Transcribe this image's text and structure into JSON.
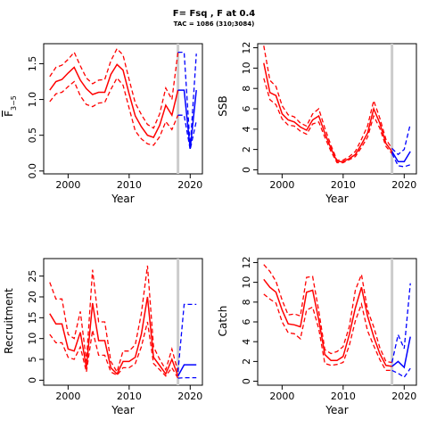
{
  "figure": {
    "title": "F= Fsq , F at 0.4",
    "subtitle": "TAC = 1086 (310;3084)"
  },
  "colors": {
    "history": "#ff0000",
    "projection": "#0000ff",
    "divider": "#cccccc"
  },
  "chart_data": [
    {
      "id": "f",
      "type": "line",
      "xlabel": "Year",
      "ylabel_main": "F",
      "ylabel_sub": "3−5",
      "xlim": [
        1996,
        2022
      ],
      "ylim": [
        -0.04,
        1.78
      ],
      "xticks": [
        2000,
        2010,
        2020
      ],
      "xtick_labels": [
        "2000",
        "2010",
        "2020"
      ],
      "yticks": [
        0,
        0.5,
        1.0,
        1.5
      ],
      "ytick_labels": [
        "0.0",
        "0.5",
        "1.0",
        "1.5"
      ],
      "divider_x": 2018,
      "history_x": [
        1997,
        1998,
        1999,
        2000,
        2001,
        2002,
        2003,
        2004,
        2005,
        2006,
        2007,
        2008,
        2009,
        2010,
        2011,
        2012,
        2013,
        2014,
        2015,
        2016,
        2017,
        2018
      ],
      "history": {
        "mid": [
          1.13,
          1.25,
          1.28,
          1.37,
          1.45,
          1.27,
          1.15,
          1.07,
          1.1,
          1.1,
          1.35,
          1.49,
          1.41,
          1.08,
          0.77,
          0.62,
          0.5,
          0.47,
          0.64,
          0.92,
          0.78,
          1.13
        ],
        "lower": [
          0.97,
          1.08,
          1.1,
          1.18,
          1.25,
          1.05,
          0.93,
          0.9,
          0.95,
          0.96,
          1.14,
          1.3,
          1.2,
          0.88,
          0.56,
          0.45,
          0.38,
          0.36,
          0.48,
          0.69,
          0.58,
          0.78
        ],
        "upper": [
          1.32,
          1.45,
          1.48,
          1.56,
          1.66,
          1.47,
          1.3,
          1.22,
          1.27,
          1.28,
          1.54,
          1.71,
          1.62,
          1.28,
          0.95,
          0.79,
          0.65,
          0.6,
          0.8,
          1.16,
          1.0,
          1.66
        ]
      },
      "projection_x": [
        2018,
        2019,
        2020,
        2021
      ],
      "projection": {
        "mid": [
          1.13,
          1.13,
          0.31,
          1.13
        ],
        "lower": [
          0.78,
          0.78,
          0.3,
          0.7
        ],
        "upper": [
          1.66,
          1.66,
          0.33,
          1.64
        ]
      }
    },
    {
      "id": "ssb",
      "type": "line",
      "xlabel": "Year",
      "ylabel_main": "SSB",
      "ylabel_sub": "",
      "xlim": [
        1996,
        2022
      ],
      "ylim": [
        -0.4,
        12.4
      ],
      "xticks": [
        2000,
        2010,
        2020
      ],
      "xtick_labels": [
        "2000",
        "2010",
        "2020"
      ],
      "yticks": [
        0,
        2,
        4,
        6,
        8,
        10,
        12
      ],
      "ytick_labels": [
        "0",
        "2",
        "4",
        "6",
        "8",
        "10",
        "12"
      ],
      "divider_x": 2018,
      "history_x": [
        1997,
        1998,
        1999,
        2000,
        2001,
        2002,
        2003,
        2004,
        2005,
        2006,
        2007,
        2008,
        2009,
        2010,
        2011,
        2012,
        2013,
        2014,
        2015,
        2016,
        2017,
        2018
      ],
      "history": {
        "mid": [
          10.5,
          7.6,
          7.3,
          5.5,
          4.9,
          4.7,
          4.2,
          3.9,
          4.9,
          5.3,
          3.6,
          2.1,
          0.8,
          0.8,
          1.1,
          1.5,
          2.5,
          3.6,
          6.0,
          4.6,
          2.6,
          1.8
        ],
        "lower": [
          9.0,
          6.9,
          6.4,
          5.0,
          4.4,
          4.3,
          3.8,
          3.5,
          4.5,
          4.7,
          3.2,
          1.8,
          0.7,
          0.7,
          1.0,
          1.3,
          2.2,
          3.2,
          5.3,
          4.1,
          2.3,
          1.6
        ],
        "upper": [
          12.2,
          8.8,
          8.2,
          6.3,
          5.4,
          5.2,
          4.6,
          4.3,
          5.5,
          6.0,
          4.1,
          2.4,
          0.95,
          0.95,
          1.3,
          1.8,
          3.0,
          4.3,
          6.8,
          5.1,
          3.0,
          2.1
        ]
      },
      "projection_x": [
        2018,
        2019,
        2020,
        2021
      ],
      "projection": {
        "mid": [
          1.8,
          0.8,
          0.8,
          1.8
        ],
        "lower": [
          1.6,
          0.4,
          0.3,
          0.5
        ],
        "upper": [
          2.1,
          1.5,
          2.0,
          4.5
        ]
      }
    },
    {
      "id": "rec",
      "type": "line",
      "xlabel": "Year",
      "ylabel_main": "Recruitment",
      "ylabel_sub": "",
      "xlim": [
        1996,
        2022
      ],
      "ylim": [
        -1.2,
        29.2
      ],
      "xticks": [
        2000,
        2010,
        2020
      ],
      "xtick_labels": [
        "2000",
        "2010",
        "2020"
      ],
      "yticks": [
        0,
        5,
        10,
        15,
        20,
        25
      ],
      "ytick_labels": [
        "0",
        "5",
        "10",
        "15",
        "20",
        "25"
      ],
      "divider_x": 2018,
      "history_x": [
        1997,
        1998,
        1999,
        2000,
        2001,
        2002,
        2003,
        2004,
        2005,
        2006,
        2007,
        2008,
        2009,
        2010,
        2011,
        2012,
        2013,
        2014,
        2015,
        2016,
        2017,
        2018
      ],
      "history": {
        "mid": [
          16,
          13.5,
          13.5,
          7.5,
          7,
          11.5,
          3,
          18.5,
          9.5,
          9.5,
          3,
          1.5,
          4.5,
          4.5,
          5.5,
          11,
          20,
          5.5,
          3.5,
          1.5,
          5,
          1
        ],
        "lower": [
          11,
          9,
          9,
          5.5,
          5,
          8,
          2,
          12,
          6,
          6,
          2,
          1.2,
          3,
          3,
          4,
          8,
          14,
          4,
          2.5,
          1,
          3,
          0.5
        ],
        "upper": [
          23.5,
          19.5,
          19.5,
          11,
          10,
          16.5,
          4.5,
          26.5,
          14,
          14,
          4.5,
          2,
          7,
          7,
          8.5,
          16,
          27.5,
          8,
          5,
          2.5,
          7.5,
          2
        ]
      },
      "projection_x": [
        2018,
        2019,
        2020,
        2021
      ],
      "projection": {
        "mid": [
          1,
          3.7,
          3.7,
          3.7
        ],
        "lower": [
          0.5,
          0.6,
          0.6,
          0.6
        ],
        "upper": [
          2,
          18.2,
          18.2,
          18.2
        ]
      }
    },
    {
      "id": "catch",
      "type": "line",
      "xlabel": "Year",
      "ylabel_main": "Catch",
      "ylabel_sub": "",
      "xlim": [
        1996,
        2022
      ],
      "ylim": [
        -0.4,
        12.4
      ],
      "xticks": [
        2000,
        2010,
        2020
      ],
      "xtick_labels": [
        "2000",
        "2010",
        "2020"
      ],
      "yticks": [
        0,
        2,
        4,
        6,
        8,
        10,
        12
      ],
      "ytick_labels": [
        "0",
        "2",
        "4",
        "6",
        "8",
        "10",
        "12"
      ],
      "divider_x": 2018,
      "history_x": [
        1997,
        1998,
        1999,
        2000,
        2001,
        2002,
        2003,
        2004,
        2005,
        2006,
        2007,
        2008,
        2009,
        2010,
        2011,
        2012,
        2013,
        2014,
        2015,
        2016,
        2017,
        2018
      ],
      "history": {
        "mid": [
          10.3,
          9.5,
          9.0,
          7.2,
          5.8,
          5.7,
          5.5,
          9.0,
          9.2,
          6.2,
          2.7,
          2.1,
          2.1,
          2.5,
          4.7,
          7.4,
          9.5,
          6.6,
          4.5,
          2.8,
          1.6,
          1.5
        ],
        "lower": [
          8.8,
          8.3,
          7.9,
          6.0,
          4.9,
          4.8,
          4.3,
          7.2,
          7.5,
          5.3,
          1.8,
          1.6,
          1.7,
          1.9,
          3.6,
          6.1,
          7.8,
          5.1,
          3.6,
          2.2,
          1.1,
          1.1
        ],
        "upper": [
          11.8,
          11.1,
          10.1,
          8.2,
          6.7,
          6.8,
          6.6,
          10.5,
          10.6,
          7.1,
          3.2,
          2.8,
          3.0,
          3.5,
          5.5,
          9.2,
          10.8,
          7.2,
          5.5,
          3.4,
          2.0,
          1.9
        ]
      },
      "projection_x": [
        2018,
        2019,
        2020,
        2021
      ],
      "projection": {
        "mid": [
          1.5,
          2.0,
          1.4,
          4.5
        ],
        "lower": [
          1.1,
          0.8,
          0.4,
          1.3
        ],
        "upper": [
          1.9,
          4.7,
          3.3,
          9.9
        ]
      }
    }
  ]
}
